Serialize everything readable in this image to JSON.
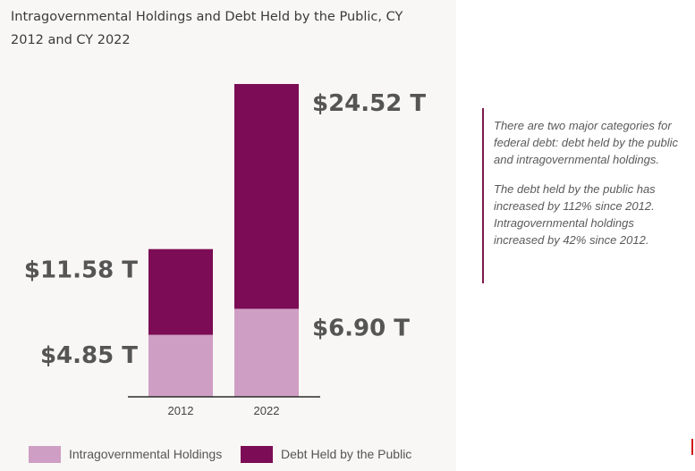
{
  "chart_data": {
    "type": "bar",
    "stacked": true,
    "title": "Intragovernmental Holdings and Debt Held by the Public, CY 2012 and CY 2022",
    "categories": [
      "2012",
      "2022"
    ],
    "series": [
      {
        "name": "Intragovernmental Holdings",
        "values": [
          4.85,
          6.9
        ],
        "color": "#cf9ec4"
      },
      {
        "name": "Debt Held by the Public",
        "values": [
          11.58,
          24.52
        ],
        "color": "#7b0c55"
      }
    ],
    "value_labels": {
      "2012": {
        "bottom": "$4.85 T",
        "top": "$11.58 T"
      },
      "2022": {
        "bottom": "$6.90 T",
        "top": "$24.52 T"
      }
    },
    "legend_position": "bottom",
    "grid": false,
    "xlabel": "",
    "ylabel": ""
  },
  "annotation": {
    "paragraph_1": "There are two major categories for federal debt: debt held by the public and intragovernmental holdings.",
    "paragraph_2": "The debt held by the public has increased by 112% since 2012. Intragovernmental holdings increased by 42% since 2012."
  },
  "colors": {
    "intragovernmental": "#cf9ec4",
    "public": "#7b0c55",
    "accent_rule": "#7a1a4c",
    "label_text": "#555555"
  }
}
